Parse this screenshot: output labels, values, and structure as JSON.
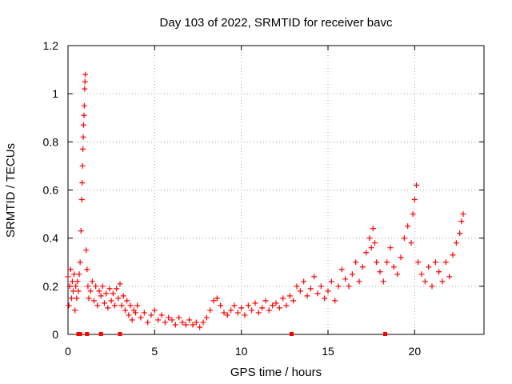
{
  "chart_data": {
    "type": "scatter",
    "title": "Day 103 of 2022, SRMTID for receiver bavc",
    "xlabel": "GPS time / hours",
    "ylabel": "SRMTID / TECUs",
    "xlim": [
      0,
      24
    ],
    "ylim": [
      0,
      1.2
    ],
    "xticks": [
      0,
      5,
      10,
      15,
      20
    ],
    "xtick_labels": [
      "0",
      "5",
      "10",
      "15",
      "20"
    ],
    "yticks": [
      0,
      0.2,
      0.4,
      0.6,
      0.8,
      1.0,
      1.2
    ],
    "ytick_labels": [
      "0",
      "0.2",
      "0.4",
      "0.6",
      "0.8",
      "1",
      "1.2"
    ],
    "grid": true,
    "marker": "+",
    "series": [
      {
        "name": "SRMTID",
        "color": "#ff0000",
        "x": [
          0.0,
          0.05,
          0.1,
          0.15,
          0.2,
          0.25,
          0.3,
          0.35,
          0.4,
          0.45,
          0.5,
          0.55,
          0.6,
          0.65,
          0.7,
          0.75,
          0.8,
          0.82,
          0.84,
          0.86,
          0.88,
          0.9,
          0.92,
          0.94,
          0.96,
          0.98,
          1.0,
          1.05,
          1.1,
          1.15,
          1.2,
          1.3,
          1.4,
          1.5,
          1.6,
          1.7,
          1.8,
          1.9,
          2.0,
          2.1,
          2.2,
          2.3,
          2.4,
          2.5,
          2.6,
          2.7,
          2.8,
          2.9,
          3.0,
          3.1,
          3.2,
          3.3,
          3.4,
          3.5,
          3.6,
          3.7,
          3.8,
          3.9,
          4.0,
          4.2,
          4.4,
          4.6,
          4.8,
          5.0,
          5.2,
          5.4,
          5.6,
          5.8,
          6.0,
          6.2,
          6.4,
          6.6,
          6.8,
          7.0,
          7.2,
          7.4,
          7.6,
          7.8,
          8.0,
          8.2,
          8.4,
          8.6,
          8.8,
          9.0,
          9.2,
          9.4,
          9.6,
          9.8,
          10.0,
          10.2,
          10.4,
          10.6,
          10.8,
          11.0,
          11.2,
          11.4,
          11.6,
          11.8,
          12.0,
          12.2,
          12.4,
          12.6,
          12.8,
          13.0,
          13.2,
          13.4,
          13.6,
          13.8,
          14.0,
          14.2,
          14.4,
          14.6,
          14.8,
          15.0,
          15.2,
          15.4,
          15.6,
          15.8,
          16.0,
          16.2,
          16.4,
          16.6,
          16.8,
          17.0,
          17.2,
          17.4,
          17.5,
          17.6,
          17.7,
          17.8,
          18.0,
          18.2,
          18.4,
          18.6,
          18.8,
          19.0,
          19.2,
          19.4,
          19.6,
          19.8,
          19.9,
          20.0,
          20.1,
          20.2,
          20.4,
          20.6,
          20.8,
          21.0,
          21.2,
          21.4,
          21.6,
          21.8,
          22.0,
          22.2,
          22.4,
          22.6,
          22.7,
          22.8
        ],
        "y": [
          0.24,
          0.12,
          0.2,
          0.27,
          0.15,
          0.22,
          0.18,
          0.25,
          0.1,
          0.2,
          0.15,
          0.22,
          0.18,
          0.25,
          0.3,
          0.43,
          0.56,
          0.63,
          0.7,
          0.77,
          0.82,
          0.87,
          0.91,
          0.95,
          1.02,
          1.05,
          1.08,
          0.35,
          0.27,
          0.2,
          0.15,
          0.18,
          0.22,
          0.14,
          0.2,
          0.12,
          0.18,
          0.16,
          0.2,
          0.13,
          0.17,
          0.11,
          0.19,
          0.14,
          0.17,
          0.12,
          0.19,
          0.15,
          0.21,
          0.12,
          0.16,
          0.1,
          0.14,
          0.08,
          0.12,
          0.06,
          0.1,
          0.09,
          0.12,
          0.07,
          0.09,
          0.05,
          0.08,
          0.1,
          0.06,
          0.08,
          0.05,
          0.07,
          0.06,
          0.04,
          0.07,
          0.05,
          0.04,
          0.06,
          0.04,
          0.05,
          0.03,
          0.05,
          0.07,
          0.1,
          0.14,
          0.15,
          0.12,
          0.09,
          0.08,
          0.1,
          0.12,
          0.09,
          0.11,
          0.08,
          0.12,
          0.1,
          0.13,
          0.09,
          0.11,
          0.14,
          0.1,
          0.12,
          0.13,
          0.11,
          0.15,
          0.12,
          0.16,
          0.14,
          0.2,
          0.18,
          0.22,
          0.16,
          0.19,
          0.24,
          0.17,
          0.2,
          0.15,
          0.18,
          0.22,
          0.14,
          0.2,
          0.27,
          0.23,
          0.2,
          0.25,
          0.3,
          0.22,
          0.28,
          0.34,
          0.4,
          0.36,
          0.44,
          0.38,
          0.3,
          0.26,
          0.22,
          0.3,
          0.36,
          0.28,
          0.25,
          0.32,
          0.4,
          0.45,
          0.38,
          0.5,
          0.56,
          0.62,
          0.3,
          0.25,
          0.22,
          0.28,
          0.2,
          0.3,
          0.26,
          0.22,
          0.3,
          0.24,
          0.33,
          0.38,
          0.42,
          0.47,
          0.5
        ]
      }
    ],
    "baseline_markers_x": [
      0.6,
      0.7,
      1.1,
      1.9,
      3.0,
      12.9,
      18.3
    ]
  }
}
